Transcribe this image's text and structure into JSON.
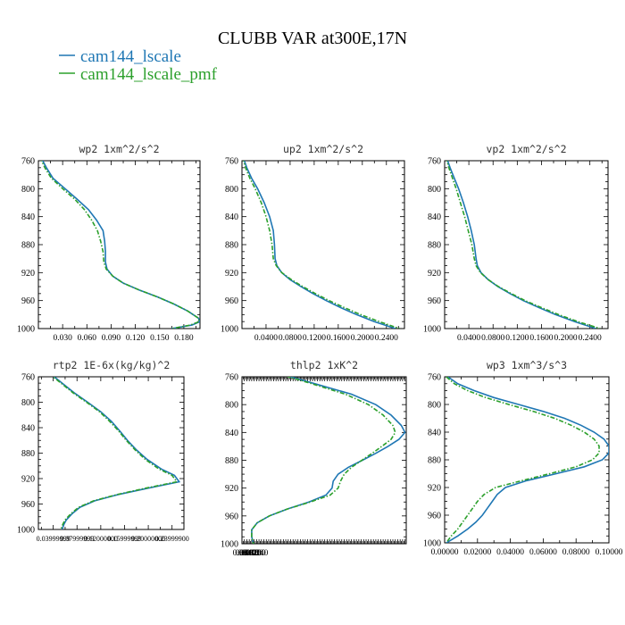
{
  "figure": {
    "title": "CLUBB VAR at300E,17N",
    "legend": [
      {
        "label": "cam144_lscale",
        "color": "#1f77b4",
        "dash": "solid"
      },
      {
        "label": "cam144_lscale_pmf",
        "color": "#2ca02c",
        "dash": "dashdot"
      }
    ]
  },
  "chart_data": [
    {
      "type": "line",
      "title": "wp2  1xm^2/s^2",
      "ylim": [
        760,
        1000
      ],
      "yreversed": true,
      "yticks": [
        760,
        800,
        840,
        880,
        920,
        960,
        1000
      ],
      "xlim": [
        0.0,
        0.2
      ],
      "xticks": [
        0.03,
        0.06,
        0.09,
        0.12,
        0.15,
        0.18
      ],
      "xtick_labels": [
        "0.030",
        "0.060",
        "0.090",
        "0.120",
        "0.150",
        "0.180"
      ],
      "y": [
        755,
        770,
        785,
        800,
        815,
        830,
        845,
        860,
        875,
        890,
        905,
        915,
        925,
        935,
        945,
        955,
        965,
        975,
        985,
        990,
        995,
        1000
      ],
      "series": [
        {
          "name": "cam144_lscale",
          "values": [
            0.003,
            0.01,
            0.018,
            0.033,
            0.048,
            0.062,
            0.072,
            0.08,
            0.082,
            0.083,
            0.083,
            0.085,
            0.092,
            0.105,
            0.125,
            0.148,
            0.168,
            0.185,
            0.198,
            0.2,
            0.19,
            0.165
          ]
        },
        {
          "name": "cam144_lscale_pmf",
          "values": [
            0.002,
            0.008,
            0.016,
            0.03,
            0.045,
            0.057,
            0.066,
            0.073,
            0.077,
            0.08,
            0.081,
            0.084,
            0.092,
            0.105,
            0.125,
            0.148,
            0.168,
            0.185,
            0.198,
            0.199,
            0.188,
            0.165
          ]
        }
      ]
    },
    {
      "type": "line",
      "title": "up2  1xm^2/s^2",
      "ylim": [
        760,
        1000
      ],
      "yreversed": true,
      "yticks": [
        760,
        800,
        840,
        880,
        920,
        960,
        1000
      ],
      "xlim": [
        0.0,
        0.27
      ],
      "xticks": [
        0.04,
        0.08,
        0.12,
        0.16,
        0.2,
        0.24
      ],
      "xtick_labels": [
        "0.0400",
        "0.0800",
        "0.1200",
        "0.1600",
        "0.2000",
        "0.2400"
      ],
      "y": [
        755,
        770,
        785,
        800,
        820,
        840,
        860,
        880,
        900,
        910,
        920,
        930,
        940,
        950,
        960,
        970,
        980,
        990,
        1000
      ],
      "series": [
        {
          "name": "cam144_lscale",
          "values": [
            0.002,
            0.008,
            0.016,
            0.026,
            0.037,
            0.046,
            0.052,
            0.054,
            0.055,
            0.058,
            0.066,
            0.08,
            0.098,
            0.118,
            0.14,
            0.164,
            0.19,
            0.22,
            0.255
          ]
        },
        {
          "name": "cam144_lscale_pmf",
          "values": [
            0.001,
            0.006,
            0.013,
            0.022,
            0.032,
            0.04,
            0.046,
            0.05,
            0.052,
            0.057,
            0.066,
            0.082,
            0.101,
            0.122,
            0.145,
            0.17,
            0.197,
            0.228,
            0.262
          ]
        }
      ]
    },
    {
      "type": "line",
      "title": "vp2  1xm^2/s^2",
      "ylim": [
        760,
        1000
      ],
      "yreversed": true,
      "yticks": [
        760,
        800,
        840,
        880,
        920,
        960,
        1000
      ],
      "xlim": [
        0.0,
        0.27
      ],
      "xticks": [
        0.04,
        0.08,
        0.12,
        0.16,
        0.2,
        0.24
      ],
      "xtick_labels": [
        "0.0400",
        "0.0800",
        "0.1200",
        "0.1600",
        "0.2000",
        "0.2400"
      ],
      "y": [
        755,
        770,
        785,
        800,
        820,
        840,
        860,
        880,
        900,
        910,
        920,
        930,
        940,
        950,
        960,
        970,
        980,
        990,
        1000
      ],
      "series": [
        {
          "name": "cam144_lscale",
          "values": [
            0.003,
            0.009,
            0.016,
            0.023,
            0.031,
            0.038,
            0.044,
            0.049,
            0.052,
            0.054,
            0.06,
            0.072,
            0.088,
            0.108,
            0.13,
            0.156,
            0.183,
            0.215,
            0.25
          ]
        },
        {
          "name": "cam144_lscale_pmf",
          "values": [
            0.002,
            0.007,
            0.013,
            0.019,
            0.026,
            0.033,
            0.039,
            0.045,
            0.049,
            0.052,
            0.059,
            0.072,
            0.089,
            0.11,
            0.133,
            0.16,
            0.188,
            0.22,
            0.257
          ]
        }
      ]
    },
    {
      "type": "line",
      "title": "rtp2  1E-6x(kg/kg)^2",
      "ylim": [
        760,
        1000
      ],
      "yreversed": true,
      "yticks": [
        760,
        800,
        840,
        880,
        920,
        960,
        1000
      ],
      "xlim": [
        0.015,
        0.26
      ],
      "xticks": [
        0.04,
        0.08,
        0.12,
        0.16,
        0.2,
        0.24
      ],
      "xtick_labels": [
        "0.03999999",
        "0.07999999",
        "0.12000000",
        "0.15999999",
        "0.20000000",
        "0.23999900"
      ],
      "y": [
        755,
        770,
        785,
        800,
        815,
        830,
        845,
        860,
        875,
        890,
        905,
        915,
        925,
        935,
        945,
        955,
        965,
        975,
        985,
        992,
        997,
        1000
      ],
      "series": [
        {
          "name": "cam144_lscale",
          "values": [
            0.035,
            0.055,
            0.075,
            0.098,
            0.12,
            0.138,
            0.152,
            0.165,
            0.18,
            0.198,
            0.222,
            0.244,
            0.252,
            0.2,
            0.15,
            0.11,
            0.085,
            0.072,
            0.062,
            0.058,
            0.056,
            0.055
          ]
        },
        {
          "name": "cam144_lscale_pmf",
          "values": [
            0.033,
            0.053,
            0.073,
            0.096,
            0.118,
            0.135,
            0.15,
            0.163,
            0.178,
            0.195,
            0.218,
            0.24,
            0.248,
            0.196,
            0.148,
            0.108,
            0.083,
            0.07,
            0.06,
            0.056,
            0.054,
            0.053
          ]
        }
      ]
    },
    {
      "type": "line",
      "title": "thlp2  1xK^2",
      "ylim": [
        760,
        1000
      ],
      "yreversed": true,
      "yticks": [
        760,
        800,
        840,
        880,
        920,
        960,
        1000
      ],
      "xlim": [
        0.0,
        0.27
      ],
      "xticks": [
        0.004,
        0.008,
        0.012,
        0.016,
        0.02,
        0.024
      ],
      "xtick_labels": [
        "0.0040",
        "0.0080",
        "0.0120",
        "0.0160",
        "0.0200",
        "0.0240"
      ],
      "y": [
        755,
        770,
        785,
        800,
        815,
        830,
        840,
        850,
        860,
        870,
        880,
        890,
        900,
        910,
        920,
        930,
        940,
        950,
        960,
        970,
        980,
        990,
        1000
      ],
      "series": [
        {
          "name": "cam144_lscale",
          "values": [
            0.06,
            0.12,
            0.18,
            0.22,
            0.245,
            0.262,
            0.268,
            0.258,
            0.24,
            0.22,
            0.198,
            0.175,
            0.158,
            0.15,
            0.148,
            0.138,
            0.11,
            0.075,
            0.045,
            0.025,
            0.016,
            0.016,
            0.019
          ]
        },
        {
          "name": "cam144_lscale_pmf",
          "values": [
            0.058,
            0.115,
            0.17,
            0.208,
            0.232,
            0.248,
            0.252,
            0.245,
            0.23,
            0.214,
            0.197,
            0.18,
            0.168,
            0.162,
            0.158,
            0.145,
            0.112,
            0.075,
            0.045,
            0.025,
            0.016,
            0.016,
            0.019
          ]
        }
      ]
    },
    {
      "type": "line",
      "title": "wp3  1xm^3/s^3",
      "ylim": [
        760,
        1000
      ],
      "yreversed": true,
      "yticks": [
        760,
        800,
        840,
        880,
        920,
        960,
        1000
      ],
      "xlim": [
        0.0,
        0.1
      ],
      "xticks": [
        0.0,
        0.02,
        0.04,
        0.06,
        0.08,
        0.1
      ],
      "xtick_labels": [
        "0.00000",
        "0.02000",
        "0.04000",
        "0.06000",
        "0.08000",
        "0.10000"
      ],
      "y": [
        760,
        770,
        780,
        790,
        800,
        810,
        820,
        830,
        840,
        850,
        860,
        870,
        880,
        890,
        900,
        910,
        920,
        930,
        940,
        950,
        960,
        970,
        980,
        990,
        1000
      ],
      "series": [
        {
          "name": "cam144_lscale",
          "values": [
            0.002,
            0.008,
            0.018,
            0.03,
            0.045,
            0.06,
            0.073,
            0.083,
            0.091,
            0.097,
            0.1,
            0.1,
            0.096,
            0.085,
            0.068,
            0.05,
            0.037,
            0.032,
            0.029,
            0.026,
            0.023,
            0.019,
            0.014,
            0.008,
            0.001
          ]
        },
        {
          "name": "cam144_lscale_pmf",
          "values": [
            0.001,
            0.006,
            0.014,
            0.025,
            0.039,
            0.054,
            0.067,
            0.077,
            0.085,
            0.091,
            0.094,
            0.094,
            0.09,
            0.08,
            0.064,
            0.047,
            0.031,
            0.024,
            0.02,
            0.017,
            0.014,
            0.011,
            0.008,
            0.004,
            0.001
          ]
        }
      ]
    }
  ]
}
